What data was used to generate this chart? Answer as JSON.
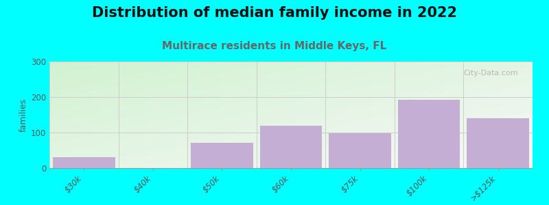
{
  "title": "Distribution of median family income in 2022",
  "subtitle": "Multirace residents in Middle Keys, FL",
  "categories": [
    "$30k",
    "$40k",
    "$50k",
    "$60k",
    "$75k",
    "$100k",
    ">$125k"
  ],
  "values": [
    30,
    0,
    72,
    120,
    98,
    192,
    140
  ],
  "bar_color": "#c4aed4",
  "background_color": "#00ffff",
  "plot_bg_left_top": "#d8e8c8",
  "plot_bg_right_top": "#e8f0e0",
  "plot_bg_bottom": "#ffffff",
  "ylabel": "families",
  "ylim": [
    0,
    300
  ],
  "yticks": [
    0,
    100,
    200,
    300
  ],
  "title_fontsize": 15,
  "subtitle_fontsize": 11,
  "subtitle_color": "#666666",
  "watermark": "City-Data.com",
  "bar_width": 0.9
}
